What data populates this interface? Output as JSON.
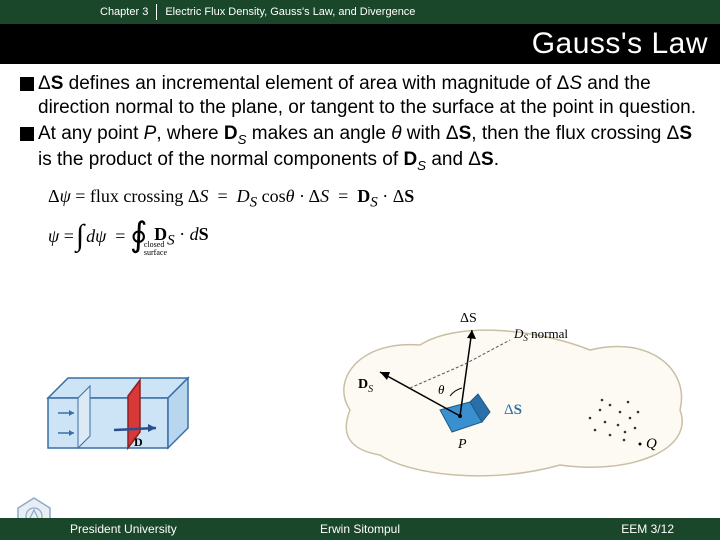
{
  "header": {
    "chapter": "Chapter 3",
    "subject": "Electric Flux Density, Gauss's Law, and Divergence"
  },
  "title": "Gauss's Law",
  "bullets": [
    {
      "html": "Δ<b>S</b> defines an incremental element of area with magnitude of Δ<i>S</i> and the direction normal to the plane, or tangent to the surface at the point in question."
    },
    {
      "html": "At any point <i>P</i>, where <b>D</b><span class='sub'><i>S</i></span> makes an angle <i>θ</i> with Δ<b>S</b>, then the flux crossing Δ<b>S</b> is the product of the normal components of <b>D</b><span class='sub'><i>S</i></span> and Δ<b>S</b>."
    }
  ],
  "equations": {
    "line1_lhs": "Δψ = flux crossing ΔS",
    "line1_rhs": " = D_S cosθ · ΔS = 𝐃_S · Δ𝐒",
    "line2_lhs": "ψ = ",
    "line2_int": "∫",
    "line2_mid": "dψ = ",
    "line2_oint": "∮",
    "line2_oint_sub": "closed\nsurface",
    "line2_rhs": " 𝐃_S · d𝐒"
  },
  "diagram_left": {
    "box_fill": "#cde4f7",
    "box_stroke": "#3a6ea5",
    "plane_fill": "#d93838",
    "arrow_color": "#2a4d8f",
    "d_label": "D"
  },
  "diagram_right": {
    "blob_fill": "#fdfaf4",
    "blob_stroke": "#c9bfa3",
    "patch_fill": "#3a8fcf",
    "patch_fill2": "#2a6fa8",
    "labels": {
      "ds_top": "ΔS",
      "ds_normal": "D_S normal",
      "ds_vec": "𝐃_S",
      "theta": "θ",
      "delta_s": "Δ𝐒",
      "p": "P",
      "q": "Q"
    },
    "dot_color": "#333333"
  },
  "footer": {
    "left": "President University",
    "center": "Erwin Sitompul",
    "right": "EEM 3/12"
  },
  "logo": {
    "stroke": "#8aa9c9",
    "fill": "#e9eef5"
  }
}
